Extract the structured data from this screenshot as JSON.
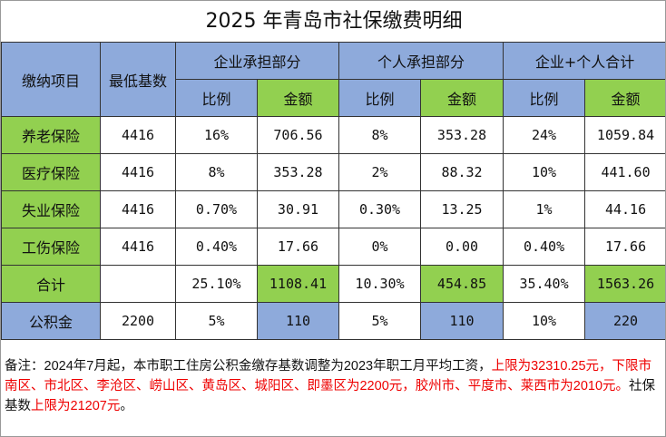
{
  "title": "2025 年青岛市社保缴费明细",
  "header": {
    "item": "缴纳项目",
    "base": "最低基数",
    "company": "企业承担部分",
    "personal": "个人承担部分",
    "total": "企业+个人合计",
    "ratio": "比例",
    "amount": "金额"
  },
  "rows": [
    {
      "name": "养老保险",
      "base": "4416",
      "c_ratio": "16%",
      "c_amt": "706.56",
      "p_ratio": "8%",
      "p_amt": "353.28",
      "t_ratio": "24%",
      "t_amt": "1059.84"
    },
    {
      "name": "医疗保险",
      "base": "4416",
      "c_ratio": "8%",
      "c_amt": "353.28",
      "p_ratio": "2%",
      "p_amt": "88.32",
      "t_ratio": "10%",
      "t_amt": "441.60"
    },
    {
      "name": "失业保险",
      "base": "4416",
      "c_ratio": "0.70%",
      "c_amt": "30.91",
      "p_ratio": "0.30%",
      "p_amt": "13.25",
      "t_ratio": "1%",
      "t_amt": "44.16"
    },
    {
      "name": "工伤保险",
      "base": "4416",
      "c_ratio": "0.40%",
      "c_amt": "17.66",
      "p_ratio": "0%",
      "p_amt": "0.00",
      "t_ratio": "0.40%",
      "t_amt": "17.66"
    }
  ],
  "total": {
    "name": "合计",
    "base": "",
    "c_ratio": "25.10%",
    "c_amt": "1108.41",
    "p_ratio": "10.30%",
    "p_amt": "454.85",
    "t_ratio": "35.40%",
    "t_amt": "1563.26"
  },
  "fund": {
    "name": "公积金",
    "base": "2200",
    "c_ratio": "5%",
    "c_amt": "110",
    "p_ratio": "5%",
    "p_amt": "110",
    "t_ratio": "10%",
    "t_amt": "220"
  },
  "note": {
    "p1": "备注：2024年7月起，本市职工住房公积金缴存基数调整为2023年职工月平均工资，",
    "p2": "上限为32310.25元，下限市南区、市北区、李沧区、崂山区、黄岛区、城阳区、即墨区为2200元，胶州市、平度市、莱西市为2010元。",
    "p3": "社保基数",
    "p4": "上限为21207元",
    "p5": "。"
  },
  "colors": {
    "header_blue": "#8eaadb",
    "green": "#92d050",
    "note_red": "#e00000"
  }
}
